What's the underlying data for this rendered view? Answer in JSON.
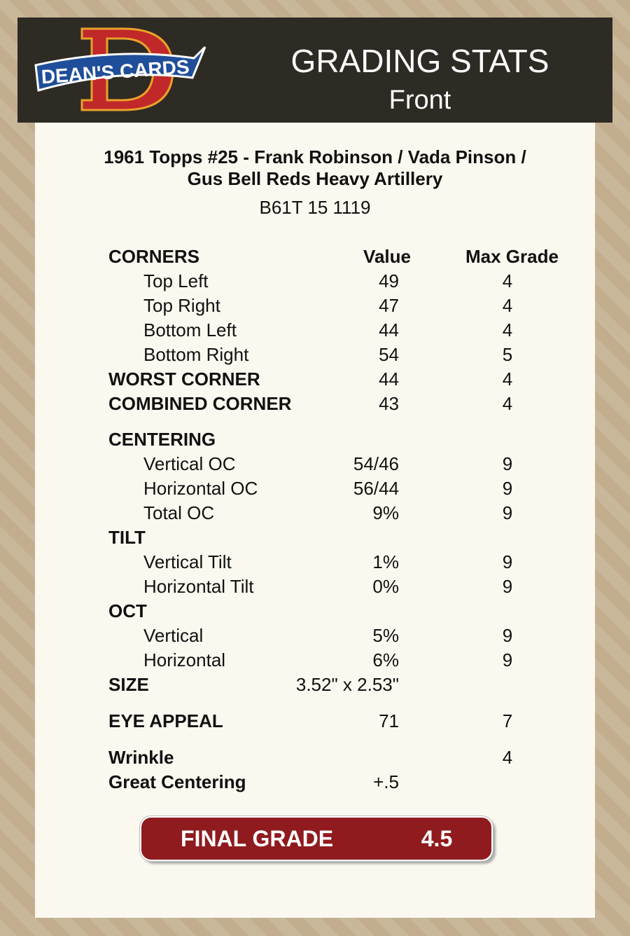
{
  "header": {
    "logo": "DEAN'S CARDS",
    "title": "GRADING STATS",
    "subtitle": "Front"
  },
  "card": {
    "title_lines": [
      "1961 Topps #25  -  Frank Robinson / Vada Pinson /",
      "Gus Bell Reds Heavy Artillery"
    ],
    "code": "B61T 15 1119"
  },
  "table": {
    "columns": [
      "Value",
      "Max Grade"
    ],
    "sections": [
      {
        "title": "CORNERS",
        "rows": [
          {
            "label": "Top Left",
            "value": 49,
            "max": 4
          },
          {
            "label": "Top Right",
            "value": 47,
            "max": 4
          },
          {
            "label": "Bottom Left",
            "value": 44,
            "max": 4
          },
          {
            "label": "Bottom Right",
            "value": 54,
            "max": 5
          }
        ]
      },
      {
        "title": "WORST CORNER",
        "value": 44,
        "max": 4
      },
      {
        "title": "COMBINED CORNER",
        "value": 43,
        "max": 4
      },
      {
        "title": "CENTERING",
        "rows": [
          {
            "label": "Vertical OC",
            "value": "54/46",
            "max": 9
          },
          {
            "label": "Horizontal OC",
            "value": "56/44",
            "max": 9
          },
          {
            "label": "Total OC",
            "value": "9%",
            "max": 9
          }
        ]
      },
      {
        "title": "TILT",
        "rows": [
          {
            "label": "Vertical Tilt",
            "value": "1%",
            "max": 9
          },
          {
            "label": "Horizontal Tilt",
            "value": "0%",
            "max": 9
          }
        ]
      },
      {
        "title": "OCT",
        "rows": [
          {
            "label": "Vertical",
            "value": "5%",
            "max": 9
          },
          {
            "label": "Horizontal",
            "value": "6%",
            "max": 9
          }
        ]
      },
      {
        "title": "SIZE",
        "value": "3.52\" x 2.53\""
      },
      {
        "title": "EYE APPEAL",
        "value": 71,
        "max": 7
      },
      {
        "title": "Wrinkle",
        "max": 4
      },
      {
        "title": "Great Centering",
        "value": "+.5"
      }
    ]
  },
  "final": {
    "label": "FINAL GRADE",
    "value": 4.5
  }
}
